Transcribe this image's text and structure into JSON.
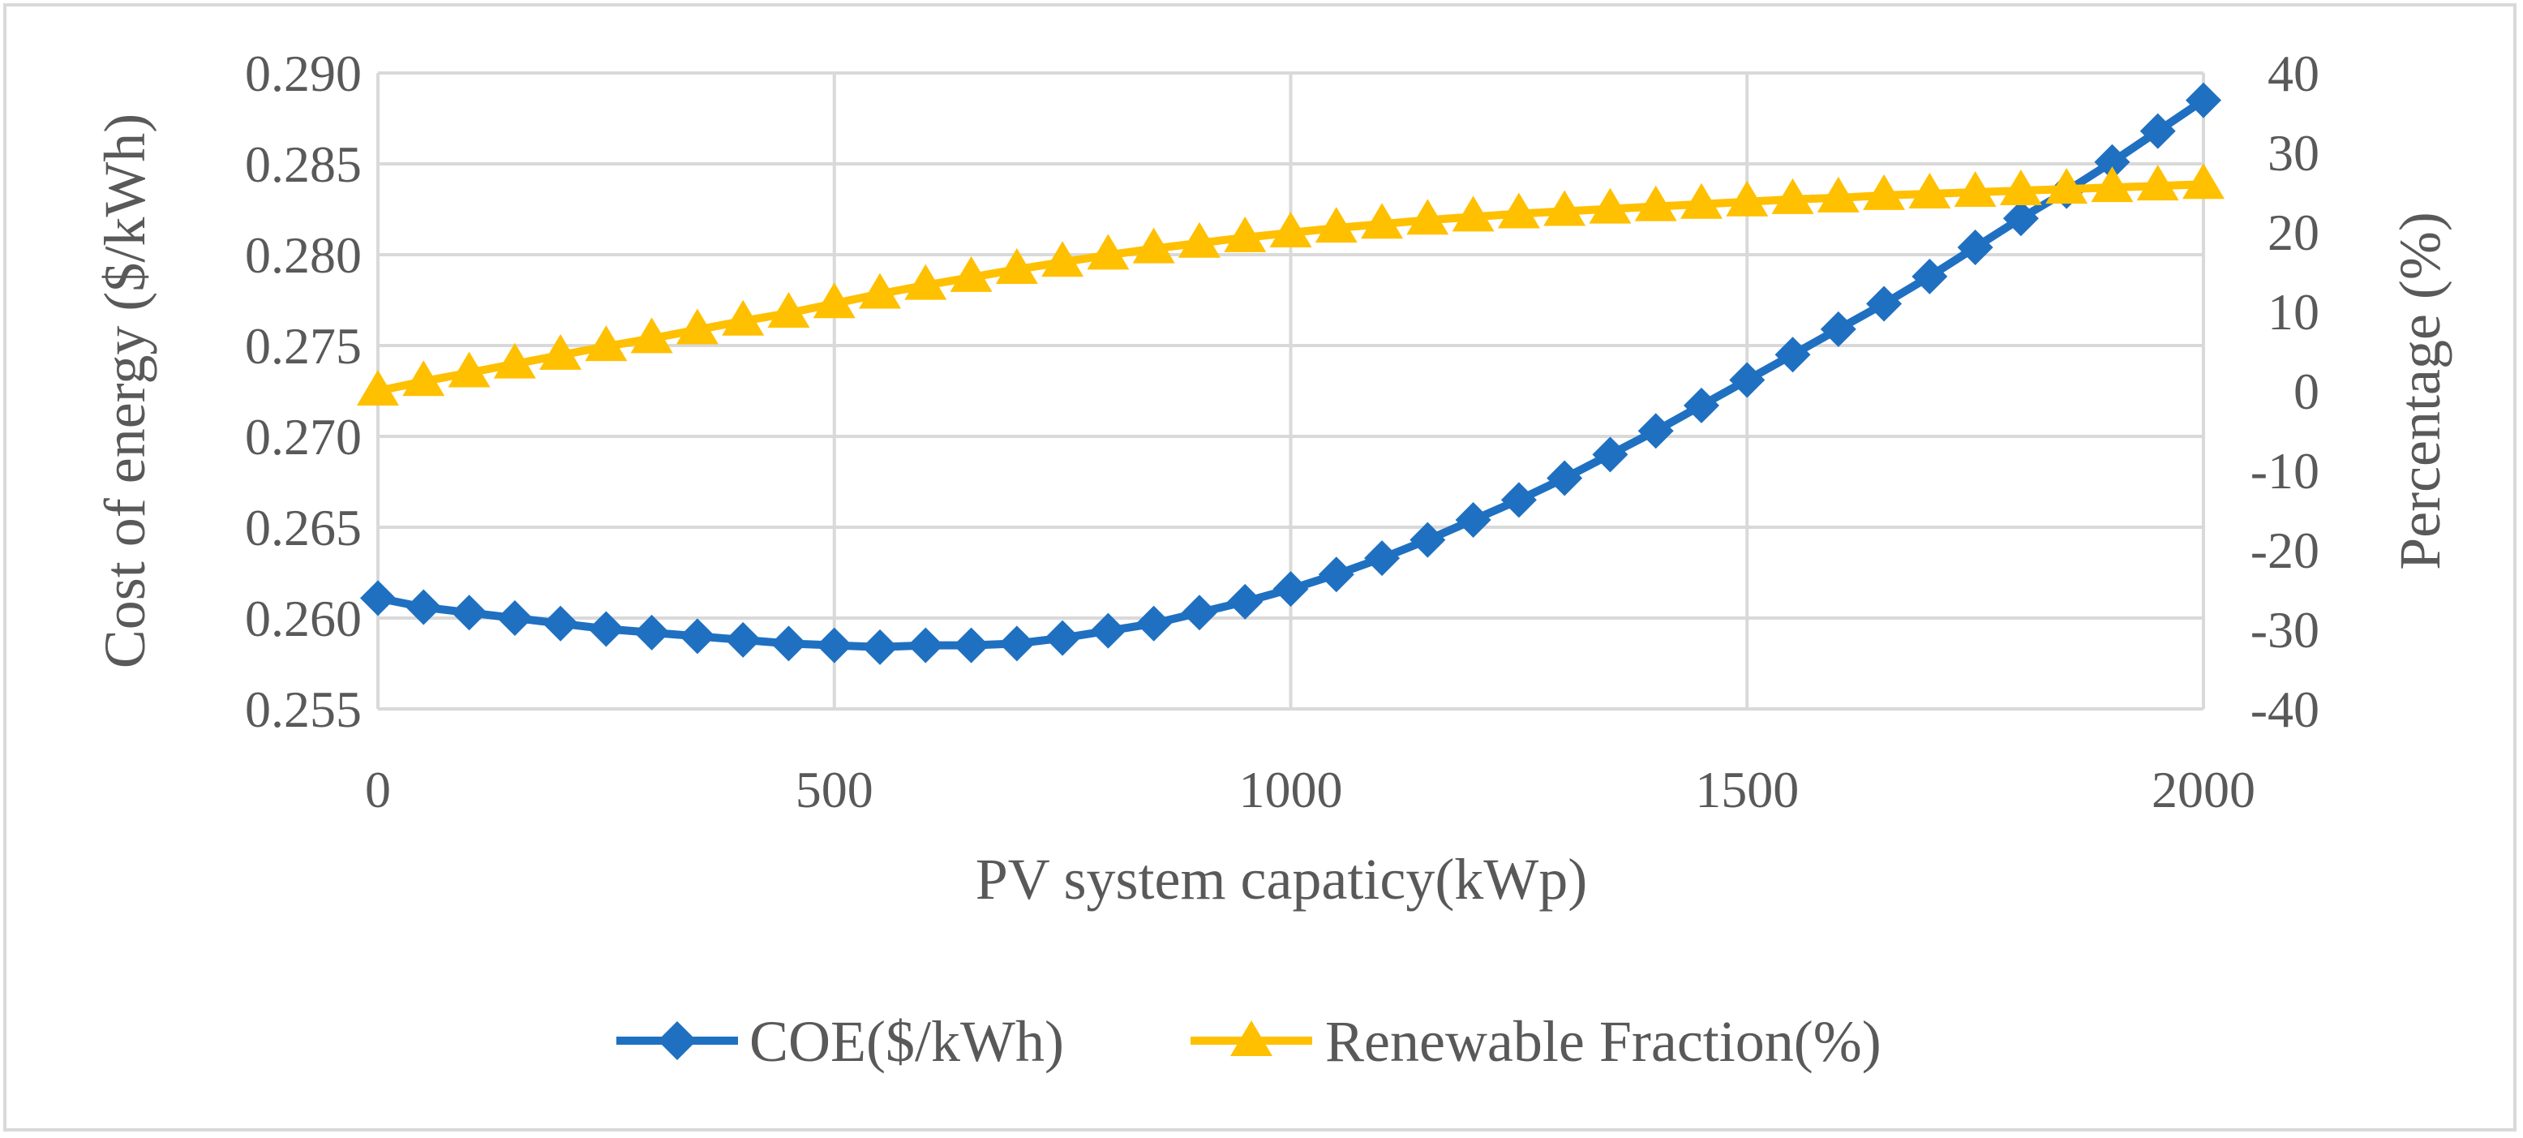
{
  "chart_data": {
    "type": "line",
    "title": "",
    "xlabel": "PV system capaticy(kWp)",
    "ylabel": "Cost of energy ($/kWh)",
    "y2label": "Percentage (%)",
    "xlim": [
      0,
      2000
    ],
    "ylim": [
      0.255,
      0.29
    ],
    "y2lim": [
      -40,
      40
    ],
    "x_ticks": [
      "0",
      "500",
      "1000",
      "1500",
      "2000"
    ],
    "y_ticks": [
      "0.255",
      "0.260",
      "0.265",
      "0.270",
      "0.275",
      "0.280",
      "0.285",
      "0.290"
    ],
    "y2_ticks": [
      "-40",
      "-30",
      "-20",
      "-10",
      "0",
      "10",
      "20",
      "30",
      "40"
    ],
    "grid": true,
    "legend_position": "bottom",
    "x": [
      0,
      50,
      100,
      150,
      200,
      250,
      300,
      350,
      400,
      450,
      500,
      550,
      600,
      650,
      700,
      750,
      800,
      850,
      900,
      950,
      1000,
      1050,
      1100,
      1150,
      1200,
      1250,
      1300,
      1350,
      1400,
      1450,
      1500,
      1550,
      1600,
      1650,
      1700,
      1750,
      1800,
      1850,
      1900,
      1950,
      2000
    ],
    "series": [
      {
        "name": "COE($/kWh)",
        "axis": "left",
        "color": "#1f70c1",
        "marker": "diamond",
        "values": [
          0.2611,
          0.2606,
          0.2603,
          0.26,
          0.2597,
          0.2594,
          0.2592,
          0.259,
          0.2588,
          0.2586,
          0.2585,
          0.2584,
          0.2585,
          0.2585,
          0.2586,
          0.2589,
          0.2593,
          0.2597,
          0.2603,
          0.2609,
          0.2616,
          0.2624,
          0.2633,
          0.2643,
          0.2654,
          0.2665,
          0.2677,
          0.269,
          0.2703,
          0.2717,
          0.2731,
          0.2745,
          0.2759,
          0.2773,
          0.2788,
          0.2804,
          0.282,
          0.2835,
          0.2851,
          0.2868,
          0.2885
        ]
      },
      {
        "name": "Renewable Fraction(%)",
        "axis": "right",
        "color": "#ffc000",
        "marker": "triangle",
        "values": [
          0.0,
          1.2,
          2.3,
          3.4,
          4.5,
          5.6,
          6.6,
          7.7,
          8.8,
          9.8,
          11.0,
          12.2,
          13.3,
          14.3,
          15.3,
          16.2,
          17.1,
          17.9,
          18.6,
          19.3,
          19.9,
          20.5,
          21.0,
          21.5,
          21.9,
          22.3,
          22.6,
          22.9,
          23.2,
          23.5,
          23.8,
          24.1,
          24.3,
          24.6,
          24.8,
          25.0,
          25.2,
          25.4,
          25.6,
          25.8,
          26.0
        ]
      }
    ]
  }
}
